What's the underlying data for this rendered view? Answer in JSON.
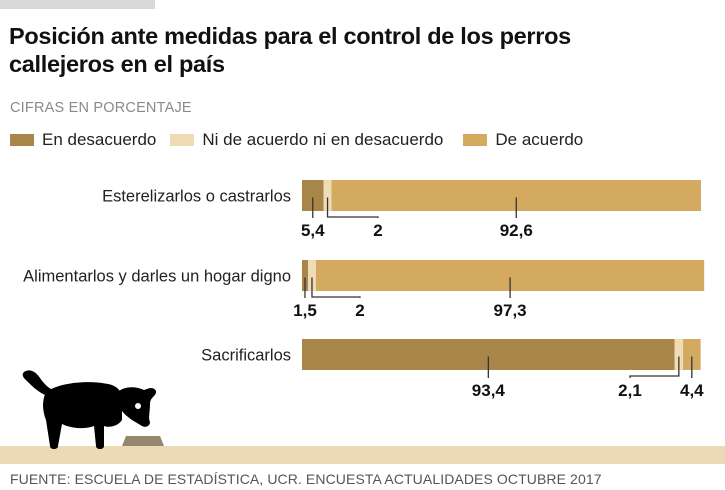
{
  "header": {
    "title": "Posición ante medidas para el control de los perros callejeros en el país",
    "subtitle": "CIFRAS EN PORCENTAJE"
  },
  "legend": [
    {
      "label": "En desacuerdo",
      "color": "#a88649"
    },
    {
      "label": "Ni de acuerdo ni en desacuerdo",
      "color": "#efdcb5"
    },
    {
      "label": "De acuerdo",
      "color": "#d3aa5f"
    }
  ],
  "footer": {
    "source": "FUENTE: ESCUELA DE ESTADÍSTICA, UCR. ENCUESTA ACTUALIDADES OCTUBRE 2017"
  },
  "illustration": {
    "name": "dog-eating-from-bowl",
    "ground_color": "#ecd9b5",
    "bowl_color": "#958670"
  },
  "chart_data": {
    "type": "bar",
    "orientation": "horizontal",
    "stacked": true,
    "title": "Posición ante medidas para el control de los perros callejeros en el país",
    "subtitle": "CIFRAS EN PORCENTAJE",
    "xlabel": "",
    "ylabel": "",
    "xlim": [
      0,
      100
    ],
    "grid": false,
    "legend_position": "top-left",
    "categories": [
      "Esterelizarlos o castrarlos",
      "Alimentarlos y darles un hogar digno",
      "Sacrificarlos"
    ],
    "series": [
      {
        "name": "En desacuerdo",
        "color": "#a88649",
        "values": [
          5.4,
          1.5,
          93.4
        ],
        "labels": [
          "5,4",
          "1,5",
          "93,4"
        ]
      },
      {
        "name": "Ni de acuerdo ni en desacuerdo",
        "color": "#efdcb5",
        "values": [
          2,
          2,
          2.1
        ],
        "labels": [
          "2",
          "2",
          "2,1"
        ]
      },
      {
        "name": "De acuerdo",
        "color": "#d3aa5f",
        "values": [
          92.6,
          97.3,
          4.4
        ],
        "labels": [
          "92,6",
          "97,3",
          "4,4"
        ]
      }
    ]
  }
}
